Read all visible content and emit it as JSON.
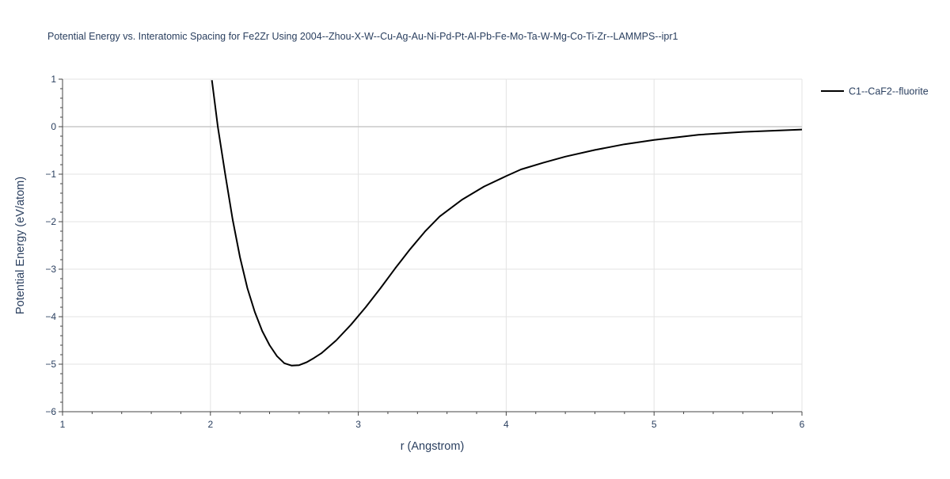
{
  "chart_data": {
    "type": "line",
    "title": "Potential Energy vs. Interatomic Spacing for Fe2Zr Using 2004--Zhou-X-W--Cu-Ag-Au-Ni-Pd-Pt-Al-Pb-Fe-Mo-Ta-W-Mg-Co-Ti-Zr--LAMMPS--ipr1",
    "xlabel": "r (Angstrom)",
    "ylabel": "Potential Energy (eV/atom)",
    "xlim": [
      1,
      6
    ],
    "ylim": [
      -6,
      1
    ],
    "x_ticks": [
      1,
      2,
      3,
      4,
      5,
      6
    ],
    "y_ticks": [
      1,
      0,
      -1,
      -2,
      -3,
      -4,
      -5,
      -6
    ],
    "y_tick_labels": [
      "1",
      "0",
      "−1",
      "−2",
      "−3",
      "−4",
      "−5",
      "−6"
    ],
    "grid": true,
    "legend_position": "top-right",
    "series": [
      {
        "name": "C1--CaF2--fluorite",
        "color": "#000000",
        "x": [
          2.01,
          2.05,
          2.1,
          2.15,
          2.2,
          2.25,
          2.3,
          2.35,
          2.4,
          2.45,
          2.5,
          2.55,
          2.6,
          2.65,
          2.7,
          2.75,
          2.85,
          2.95,
          3.05,
          3.15,
          3.25,
          3.35,
          3.45,
          3.55,
          3.7,
          3.85,
          4.0,
          4.1,
          4.25,
          4.4,
          4.6,
          4.8,
          5.0,
          5.3,
          5.6,
          6.0
        ],
        "y": [
          0.98,
          0.0,
          -1.0,
          -1.95,
          -2.75,
          -3.4,
          -3.9,
          -4.3,
          -4.6,
          -4.83,
          -4.98,
          -5.03,
          -5.02,
          -4.96,
          -4.87,
          -4.77,
          -4.5,
          -4.17,
          -3.8,
          -3.4,
          -2.98,
          -2.58,
          -2.21,
          -1.89,
          -1.54,
          -1.26,
          -1.04,
          -0.9,
          -0.76,
          -0.63,
          -0.49,
          -0.37,
          -0.28,
          -0.17,
          -0.11,
          -0.06
        ]
      }
    ]
  }
}
